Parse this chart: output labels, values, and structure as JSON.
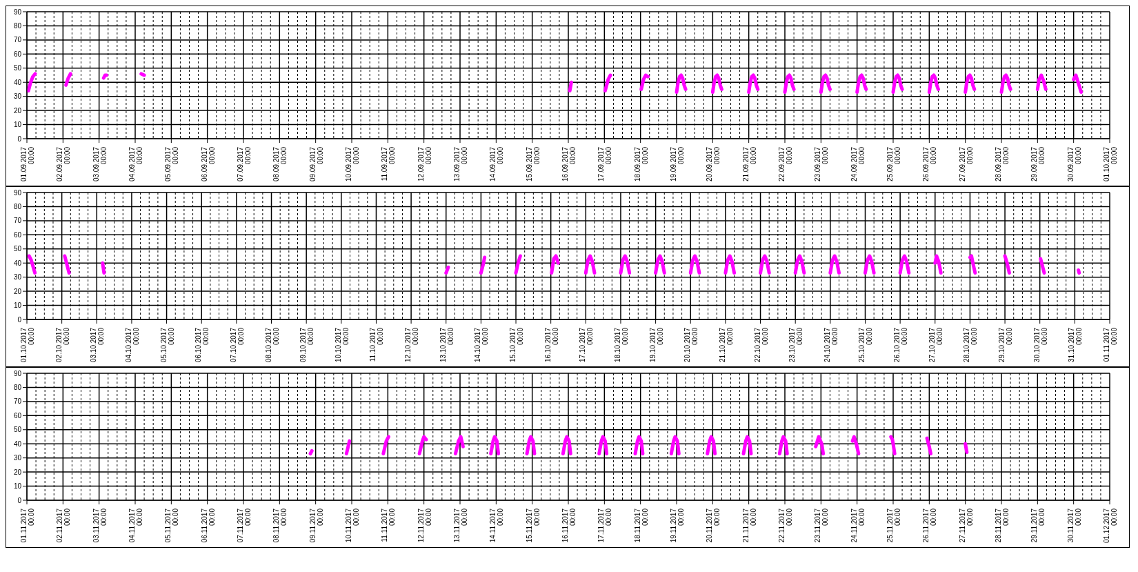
{
  "chart_data": [
    {
      "type": "line",
      "color": "#ff00ff",
      "marker": "none",
      "grid": true,
      "ylim": [
        0,
        90
      ],
      "yticks": [
        0,
        10,
        20,
        30,
        40,
        50,
        60,
        70,
        80,
        90
      ],
      "xlim": [
        "2017-09-01T00:00",
        "2017-10-01T00:00"
      ],
      "xticks": [
        {
          "value": "2017-09-01T00:00",
          "label": "01.09.2017 00:00"
        },
        {
          "value": "2017-09-02T00:00",
          "label": "02.09.2017 00:00"
        },
        {
          "value": "2017-09-03T00:00",
          "label": "03.09.2017 00:00"
        },
        {
          "value": "2017-09-04T00:00",
          "label": "04.09.2017 00:00"
        },
        {
          "value": "2017-09-05T00:00",
          "label": "05.09.2017 00:00"
        },
        {
          "value": "2017-09-06T00:00",
          "label": "06.09.2017 00:00"
        },
        {
          "value": "2017-09-07T00:00",
          "label": "07.09.2017 00:00"
        },
        {
          "value": "2017-09-08T00:00",
          "label": "08.09.2017 00:00"
        },
        {
          "value": "2017-09-09T00:00",
          "label": "09.09.2017 00:00"
        },
        {
          "value": "2017-09-10T00:00",
          "label": "10.09.2017 00:00"
        },
        {
          "value": "2017-09-11T00:00",
          "label": "11.09.2017 00:00"
        },
        {
          "value": "2017-09-12T00:00",
          "label": "12.09.2017 00:00"
        },
        {
          "value": "2017-09-13T00:00",
          "label": "13.09.2017 00:00"
        },
        {
          "value": "2017-09-14T00:00",
          "label": "14.09.2017 00:00"
        },
        {
          "value": "2017-09-15T00:00",
          "label": "15.09.2017 00:00"
        },
        {
          "value": "2017-09-16T00:00",
          "label": "16.09.2017 00:00"
        },
        {
          "value": "2017-09-17T00:00",
          "label": "17.09.2017 00:00"
        },
        {
          "value": "2017-09-18T00:00",
          "label": "18.09.2017 00:00"
        },
        {
          "value": "2017-09-19T00:00",
          "label": "19.09.2017 00:00"
        },
        {
          "value": "2017-09-20T00:00",
          "label": "20.09.2017 00:00"
        },
        {
          "value": "2017-09-21T00:00",
          "label": "21.09.2017 00:00"
        },
        {
          "value": "2017-09-22T00:00",
          "label": "22.09.2017 00:00"
        },
        {
          "value": "2017-09-23T00:00",
          "label": "23.09.2017 00:00"
        },
        {
          "value": "2017-09-24T00:00",
          "label": "24.09.2017 00:00"
        },
        {
          "value": "2017-09-25T00:00",
          "label": "25.09.2017 00:00"
        },
        {
          "value": "2017-09-26T00:00",
          "label": "26.09.2017 00:00"
        },
        {
          "value": "2017-09-27T00:00",
          "label": "27.09.2017 00:00"
        },
        {
          "value": "2017-09-28T00:00",
          "label": "28.09.2017 00:00"
        },
        {
          "value": "2017-09-29T00:00",
          "label": "29.09.2017 00:00"
        },
        {
          "value": "2017-09-30T00:00",
          "label": "30.09.2017 00:00"
        },
        {
          "value": "2017-10-01T00:00",
          "label": "01.10.2017 00:00"
        }
      ],
      "x": [
        "2017-09-01T01:00",
        "2017-09-01T02:30",
        "2017-09-01T04:00",
        "2017-09-01T05:30",
        "2017-09-01T12:00",
        "2017-09-02T02:00",
        "2017-09-02T03:30",
        "2017-09-02T05:00",
        "2017-09-02T12:00",
        "2017-09-03T03:00",
        "2017-09-03T04:00",
        "2017-09-03T05:00",
        "2017-09-03T12:00",
        "2017-09-04T04:00",
        "2017-09-04T06:00",
        "2017-09-04T12:00",
        "2017-09-16T01:00",
        "2017-09-16T02:00",
        "2017-09-16T12:00",
        "2017-09-17T00:30",
        "2017-09-17T02:30",
        "2017-09-17T04:00",
        "2017-09-17T12:00",
        "2017-09-18T00:30",
        "2017-09-18T02:00",
        "2017-09-18T03:30",
        "2017-09-18T05:00",
        "2017-09-18T12:00",
        "2017-09-19T00:00",
        "2017-09-19T01:00",
        "2017-09-19T02:00",
        "2017-09-19T03:00",
        "2017-09-19T04:00",
        "2017-09-19T05:00",
        "2017-09-19T06:00",
        "2017-09-19T12:00",
        "2017-09-20T00:00",
        "2017-09-20T01:00",
        "2017-09-20T02:00",
        "2017-09-20T03:00",
        "2017-09-20T04:00",
        "2017-09-20T05:00",
        "2017-09-20T06:00",
        "2017-09-20T12:00",
        "2017-09-21T00:00",
        "2017-09-21T01:00",
        "2017-09-21T02:00",
        "2017-09-21T03:00",
        "2017-09-21T04:00",
        "2017-09-21T05:00",
        "2017-09-21T06:00",
        "2017-09-21T12:00",
        "2017-09-22T00:00",
        "2017-09-22T01:00",
        "2017-09-22T02:00",
        "2017-09-22T03:00",
        "2017-09-22T04:00",
        "2017-09-22T05:00",
        "2017-09-22T06:00",
        "2017-09-22T12:00",
        "2017-09-23T00:00",
        "2017-09-23T01:00",
        "2017-09-23T02:00",
        "2017-09-23T03:00",
        "2017-09-23T04:00",
        "2017-09-23T05:00",
        "2017-09-23T06:00",
        "2017-09-23T12:00",
        "2017-09-24T00:00",
        "2017-09-24T01:00",
        "2017-09-24T02:00",
        "2017-09-24T03:00",
        "2017-09-24T04:00",
        "2017-09-24T05:00",
        "2017-09-24T06:00",
        "2017-09-24T12:00",
        "2017-09-25T00:00",
        "2017-09-25T01:00",
        "2017-09-25T02:00",
        "2017-09-25T03:00",
        "2017-09-25T04:00",
        "2017-09-25T05:00",
        "2017-09-25T06:00",
        "2017-09-25T12:00",
        "2017-09-26T00:00",
        "2017-09-26T01:00",
        "2017-09-26T02:00",
        "2017-09-26T03:00",
        "2017-09-26T04:00",
        "2017-09-26T05:00",
        "2017-09-26T06:00",
        "2017-09-26T12:00",
        "2017-09-27T00:00",
        "2017-09-27T01:00",
        "2017-09-27T02:00",
        "2017-09-27T03:00",
        "2017-09-27T04:00",
        "2017-09-27T05:00",
        "2017-09-27T06:00",
        "2017-09-27T12:00",
        "2017-09-28T00:00",
        "2017-09-28T01:00",
        "2017-09-28T02:00",
        "2017-09-28T03:00",
        "2017-09-28T04:00",
        "2017-09-28T05:00",
        "2017-09-28T06:00",
        "2017-09-28T12:00",
        "2017-09-29T00:00",
        "2017-09-29T01:00",
        "2017-09-29T02:30",
        "2017-09-29T04:00",
        "2017-09-29T05:30",
        "2017-09-29T12:00",
        "2017-09-30T00:00",
        "2017-09-30T01:30",
        "2017-09-30T03:00",
        "2017-09-30T05:00"
      ],
      "values": [
        34,
        40,
        44,
        46,
        null,
        38,
        43,
        46,
        null,
        43,
        45,
        45,
        null,
        46,
        45,
        null,
        34,
        40,
        null,
        34,
        42,
        45,
        null,
        35,
        42,
        45,
        44,
        null,
        33,
        40,
        44,
        45,
        43,
        38,
        35,
        null,
        33,
        40,
        44,
        45,
        43,
        38,
        35,
        null,
        33,
        40,
        44,
        45,
        43,
        38,
        35,
        null,
        33,
        40,
        44,
        45,
        43,
        38,
        35,
        null,
        33,
        40,
        44,
        45,
        43,
        38,
        35,
        null,
        33,
        40,
        44,
        45,
        43,
        38,
        35,
        null,
        33,
        40,
        44,
        45,
        43,
        38,
        35,
        null,
        33,
        40,
        44,
        45,
        43,
        38,
        35,
        null,
        33,
        40,
        44,
        45,
        43,
        38,
        35,
        null,
        33,
        40,
        44,
        45,
        43,
        38,
        35,
        null,
        35,
        42,
        45,
        41,
        35,
        null,
        42,
        45,
        40,
        33
      ]
    },
    {
      "type": "line",
      "color": "#ff00ff",
      "marker": "none",
      "grid": true,
      "ylim": [
        0,
        90
      ],
      "yticks": [
        0,
        10,
        20,
        30,
        40,
        50,
        60,
        70,
        80,
        90
      ],
      "xlim": [
        "2017-10-01T00:00",
        "2017-11-01T00:00"
      ],
      "xticks": [
        {
          "value": "2017-10-01T00:00",
          "label": "01.10.2017 00:00"
        },
        {
          "value": "2017-10-02T00:00",
          "label": "02.10.2017 00:00"
        },
        {
          "value": "2017-10-03T00:00",
          "label": "03.10.2017 00:00"
        },
        {
          "value": "2017-10-04T00:00",
          "label": "04.10.2017 00:00"
        },
        {
          "value": "2017-10-05T00:00",
          "label": "05.10.2017 00:00"
        },
        {
          "value": "2017-10-06T00:00",
          "label": "06.10.2017 00:00"
        },
        {
          "value": "2017-10-07T00:00",
          "label": "07.10.2017 00:00"
        },
        {
          "value": "2017-10-08T00:00",
          "label": "08.10.2017 00:00"
        },
        {
          "value": "2017-10-09T00:00",
          "label": "09.10.2017 00:00"
        },
        {
          "value": "2017-10-10T00:00",
          "label": "10.10.2017 00:00"
        },
        {
          "value": "2017-10-11T00:00",
          "label": "11.10.2017 00:00"
        },
        {
          "value": "2017-10-12T00:00",
          "label": "12.10.2017 00:00"
        },
        {
          "value": "2017-10-13T00:00",
          "label": "13.10.2017 00:00"
        },
        {
          "value": "2017-10-14T00:00",
          "label": "14.10.2017 00:00"
        },
        {
          "value": "2017-10-15T00:00",
          "label": "15.10.2017 00:00"
        },
        {
          "value": "2017-10-16T00:00",
          "label": "16.10.2017 00:00"
        },
        {
          "value": "2017-10-17T00:00",
          "label": "17.10.2017 00:00"
        },
        {
          "value": "2017-10-18T00:00",
          "label": "18.10.2017 00:00"
        },
        {
          "value": "2017-10-19T00:00",
          "label": "19.10.2017 00:00"
        },
        {
          "value": "2017-10-20T00:00",
          "label": "20.10.2017 00:00"
        },
        {
          "value": "2017-10-21T00:00",
          "label": "21.10.2017 00:00"
        },
        {
          "value": "2017-10-22T00:00",
          "label": "22.10.2017 00:00"
        },
        {
          "value": "2017-10-23T00:00",
          "label": "23.10.2017 00:00"
        },
        {
          "value": "2017-10-24T00:00",
          "label": "24.10.2017 00:00"
        },
        {
          "value": "2017-10-25T00:00",
          "label": "25.10.2017 00:00"
        },
        {
          "value": "2017-10-26T00:00",
          "label": "26.10.2017 00:00"
        },
        {
          "value": "2017-10-27T00:00",
          "label": "27.10.2017 00:00"
        },
        {
          "value": "2017-10-28T00:00",
          "label": "28.10.2017 00:00"
        },
        {
          "value": "2017-10-29T00:00",
          "label": "29.10.2017 00:00"
        },
        {
          "value": "2017-10-30T00:00",
          "label": "30.10.2017 00:00"
        },
        {
          "value": "2017-10-31T00:00",
          "label": "31.10.2017 00:00"
        },
        {
          "value": "2017-11-01T00:00",
          "label": "01.11.2017 00:00"
        }
      ],
      "x": [
        "2017-10-01T01:30",
        "2017-10-01T03:00",
        "2017-10-01T05:30",
        "2017-10-01T12:00",
        "2017-10-02T02:00",
        "2017-10-02T03:30",
        "2017-10-02T05:00",
        "2017-10-02T12:00",
        "2017-10-03T04:00",
        "2017-10-03T05:00",
        "2017-10-03T12:00",
        "2017-10-13T00:00",
        "2017-10-13T01:30",
        "2017-10-13T12:00",
        "2017-10-14T00:00",
        "2017-10-14T01:30",
        "2017-10-14T02:30",
        "2017-10-14T12:00",
        "2017-10-15T00:00",
        "2017-10-15T01:30",
        "2017-10-15T03:00",
        "2017-10-15T12:00",
        "2017-10-16T00:30",
        "2017-10-16T02:00",
        "2017-10-16T03:30",
        "2017-10-16T05:00",
        "2017-10-16T12:00",
        "2017-10-17T00:00",
        "2017-10-17T01:30",
        "2017-10-17T03:00",
        "2017-10-17T04:30",
        "2017-10-17T06:00",
        "2017-10-17T12:00",
        "2017-10-18T00:00",
        "2017-10-18T01:30",
        "2017-10-18T03:00",
        "2017-10-18T04:30",
        "2017-10-18T06:00",
        "2017-10-18T12:00",
        "2017-10-19T00:00",
        "2017-10-19T01:30",
        "2017-10-19T03:00",
        "2017-10-19T04:30",
        "2017-10-19T06:00",
        "2017-10-19T12:00",
        "2017-10-20T00:00",
        "2017-10-20T01:30",
        "2017-10-20T03:00",
        "2017-10-20T04:30",
        "2017-10-20T06:00",
        "2017-10-20T12:00",
        "2017-10-21T00:00",
        "2017-10-21T01:30",
        "2017-10-21T03:00",
        "2017-10-21T04:30",
        "2017-10-21T06:00",
        "2017-10-21T12:00",
        "2017-10-22T00:00",
        "2017-10-22T01:30",
        "2017-10-22T03:00",
        "2017-10-22T04:30",
        "2017-10-22T06:00",
        "2017-10-22T12:00",
        "2017-10-23T00:00",
        "2017-10-23T01:30",
        "2017-10-23T03:00",
        "2017-10-23T04:30",
        "2017-10-23T06:00",
        "2017-10-23T12:00",
        "2017-10-24T00:00",
        "2017-10-24T01:30",
        "2017-10-24T03:00",
        "2017-10-24T04:30",
        "2017-10-24T06:00",
        "2017-10-24T12:00",
        "2017-10-25T00:00",
        "2017-10-25T01:30",
        "2017-10-25T03:00",
        "2017-10-25T04:30",
        "2017-10-25T06:00",
        "2017-10-25T12:00",
        "2017-10-26T00:00",
        "2017-10-26T01:30",
        "2017-10-26T03:00",
        "2017-10-26T04:30",
        "2017-10-26T06:00",
        "2017-10-26T12:00",
        "2017-10-27T00:00",
        "2017-10-27T01:00",
        "2017-10-27T02:30",
        "2017-10-27T04:00",
        "2017-10-27T12:00",
        "2017-10-28T00:00",
        "2017-10-28T01:00",
        "2017-10-28T02:00",
        "2017-10-28T03:30",
        "2017-10-28T12:00",
        "2017-10-29T00:00",
        "2017-10-29T01:30",
        "2017-10-29T03:00",
        "2017-10-29T12:00",
        "2017-10-30T00:30",
        "2017-10-30T02:00",
        "2017-10-30T03:00",
        "2017-10-30T12:00",
        "2017-10-31T02:30",
        "2017-10-31T03:00"
      ],
      "values": [
        45,
        42,
        33,
        null,
        45,
        39,
        33,
        null,
        40,
        33,
        null,
        33,
        37,
        null,
        33,
        39,
        44,
        null,
        33,
        40,
        45,
        null,
        33,
        43,
        45,
        40,
        null,
        33,
        42,
        45,
        41,
        33,
        null,
        33,
        42,
        45,
        41,
        33,
        null,
        33,
        42,
        45,
        41,
        33,
        null,
        33,
        42,
        45,
        41,
        33,
        null,
        33,
        42,
        45,
        41,
        33,
        null,
        33,
        42,
        45,
        41,
        33,
        null,
        33,
        42,
        45,
        41,
        33,
        null,
        33,
        42,
        45,
        41,
        33,
        null,
        33,
        42,
        45,
        41,
        33,
        null,
        33,
        42,
        45,
        41,
        33,
        null,
        40,
        45,
        41,
        33,
        null,
        44,
        45,
        40,
        33,
        null,
        45,
        40,
        33,
        null,
        43,
        37,
        33,
        null,
        35,
        33
      ]
    },
    {
      "type": "line",
      "color": "#ff00ff",
      "marker": "none",
      "grid": true,
      "ylim": [
        0,
        90
      ],
      "yticks": [
        0,
        10,
        20,
        30,
        40,
        50,
        60,
        70,
        80,
        90
      ],
      "xlim": [
        "2017-11-01T00:00",
        "2017-12-01T00:00"
      ],
      "xticks": [
        {
          "value": "2017-11-01T00:00",
          "label": "01.11.2017 00:00"
        },
        {
          "value": "2017-11-02T00:00",
          "label": "02.11.2017 00:00"
        },
        {
          "value": "2017-11-03T00:00",
          "label": "03.11.2017 00:00"
        },
        {
          "value": "2017-11-04T00:00",
          "label": "04.11.2017 00:00"
        },
        {
          "value": "2017-11-05T00:00",
          "label": "05.11.2017 00:00"
        },
        {
          "value": "2017-11-06T00:00",
          "label": "06.11.2017 00:00"
        },
        {
          "value": "2017-11-07T00:00",
          "label": "07.11.2017 00:00"
        },
        {
          "value": "2017-11-08T00:00",
          "label": "08.11.2017 00:00"
        },
        {
          "value": "2017-11-09T00:00",
          "label": "09.11.2017 00:00"
        },
        {
          "value": "2017-11-10T00:00",
          "label": "10.11.2017 00:00"
        },
        {
          "value": "2017-11-11T00:00",
          "label": "11.11.2017 00:00"
        },
        {
          "value": "2017-11-12T00:00",
          "label": "12.11.2017 00:00"
        },
        {
          "value": "2017-11-13T00:00",
          "label": "13.11.2017 00:00"
        },
        {
          "value": "2017-11-14T00:00",
          "label": "14.11.2017 00:00"
        },
        {
          "value": "2017-11-15T00:00",
          "label": "15.11.2017 00:00"
        },
        {
          "value": "2017-11-16T00:00",
          "label": "16.11.2017 00:00"
        },
        {
          "value": "2017-11-17T00:00",
          "label": "17.11.2017 00:00"
        },
        {
          "value": "2017-11-18T00:00",
          "label": "18.11.2017 00:00"
        },
        {
          "value": "2017-11-19T00:00",
          "label": "19.11.2017 00:00"
        },
        {
          "value": "2017-11-20T00:00",
          "label": "20.11.2017 00:00"
        },
        {
          "value": "2017-11-21T00:00",
          "label": "21.11.2017 00:00"
        },
        {
          "value": "2017-11-22T00:00",
          "label": "22.11.2017 00:00"
        },
        {
          "value": "2017-11-23T00:00",
          "label": "23.11.2017 00:00"
        },
        {
          "value": "2017-11-24T00:00",
          "label": "24.11.2017 00:00"
        },
        {
          "value": "2017-11-25T00:00",
          "label": "25.11.2017 00:00"
        },
        {
          "value": "2017-11-26T00:00",
          "label": "26.11.2017 00:00"
        },
        {
          "value": "2017-11-27T00:00",
          "label": "27.11.2017 00:00"
        },
        {
          "value": "2017-11-28T00:00",
          "label": "28.11.2017 00:00"
        },
        {
          "value": "2017-11-29T00:00",
          "label": "29.11.2017 00:00"
        },
        {
          "value": "2017-11-30T00:00",
          "label": "30.11.2017 00:00"
        },
        {
          "value": "2017-12-01T00:00",
          "label": "01.12.2017 00:00"
        }
      ],
      "x": [
        "2017-11-08T20:30",
        "2017-11-08T21:30",
        "2017-11-09T12:00",
        "2017-11-09T20:30",
        "2017-11-09T22:30",
        "2017-11-10T12:00",
        "2017-11-10T21:00",
        "2017-11-10T23:00",
        "2017-11-11T00:30",
        "2017-11-11T12:00",
        "2017-11-11T21:00",
        "2017-11-11T23:00",
        "2017-11-12T00:00",
        "2017-11-12T01:30",
        "2017-11-12T12:00",
        "2017-11-12T21:00",
        "2017-11-12T23:00",
        "2017-11-13T00:30",
        "2017-11-13T02:00",
        "2017-11-13T12:00",
        "2017-11-13T20:30",
        "2017-11-13T22:00",
        "2017-11-13T23:00",
        "2017-11-14T00:30",
        "2017-11-14T01:30",
        "2017-11-14T12:00",
        "2017-11-14T20:30",
        "2017-11-14T22:00",
        "2017-11-14T23:00",
        "2017-11-15T00:30",
        "2017-11-15T01:30",
        "2017-11-15T12:00",
        "2017-11-15T20:30",
        "2017-11-15T22:00",
        "2017-11-15T23:00",
        "2017-11-16T00:30",
        "2017-11-16T01:30",
        "2017-11-16T12:00",
        "2017-11-16T20:30",
        "2017-11-16T22:00",
        "2017-11-16T23:00",
        "2017-11-17T00:30",
        "2017-11-17T01:30",
        "2017-11-17T12:00",
        "2017-11-17T20:30",
        "2017-11-17T22:00",
        "2017-11-17T23:00",
        "2017-11-18T00:30",
        "2017-11-18T01:30",
        "2017-11-18T12:00",
        "2017-11-18T20:30",
        "2017-11-18T22:00",
        "2017-11-18T23:00",
        "2017-11-19T00:30",
        "2017-11-19T01:30",
        "2017-11-19T12:00",
        "2017-11-19T20:30",
        "2017-11-19T22:00",
        "2017-11-19T23:00",
        "2017-11-20T00:30",
        "2017-11-20T01:30",
        "2017-11-20T12:00",
        "2017-11-20T20:30",
        "2017-11-20T22:00",
        "2017-11-20T23:00",
        "2017-11-21T00:30",
        "2017-11-21T01:30",
        "2017-11-21T12:00",
        "2017-11-21T20:30",
        "2017-11-21T22:00",
        "2017-11-21T23:00",
        "2017-11-22T00:30",
        "2017-11-22T01:30",
        "2017-11-22T12:00",
        "2017-11-22T20:30",
        "2017-11-22T22:30",
        "2017-11-23T00:30",
        "2017-11-23T01:30",
        "2017-11-23T12:00",
        "2017-11-23T21:00",
        "2017-11-23T22:00",
        "2017-11-23T23:30",
        "2017-11-24T01:00",
        "2017-11-24T12:00",
        "2017-11-24T22:30",
        "2017-11-24T23:30",
        "2017-11-25T00:00",
        "2017-11-25T01:00",
        "2017-11-25T12:00",
        "2017-11-25T22:30",
        "2017-11-26T00:00",
        "2017-11-26T01:00",
        "2017-11-26T12:00",
        "2017-11-27T00:00",
        "2017-11-27T01:00"
      ],
      "values": [
        33,
        35,
        null,
        33,
        42,
        null,
        33,
        42,
        45,
        null,
        33,
        42,
        45,
        43,
        null,
        33,
        42,
        45,
        38,
        null,
        33,
        42,
        45,
        42,
        33,
        null,
        33,
        42,
        45,
        42,
        33,
        null,
        33,
        42,
        45,
        42,
        33,
        null,
        33,
        42,
        45,
        42,
        33,
        null,
        33,
        42,
        45,
        42,
        33,
        null,
        33,
        42,
        45,
        42,
        33,
        null,
        33,
        42,
        45,
        42,
        33,
        null,
        33,
        42,
        45,
        42,
        33,
        null,
        33,
        42,
        45,
        42,
        33,
        null,
        38,
        45,
        40,
        33,
        null,
        42,
        45,
        40,
        33,
        null,
        45,
        43,
        40,
        33,
        null,
        44,
        38,
        33,
        null,
        40,
        34
      ]
    }
  ]
}
